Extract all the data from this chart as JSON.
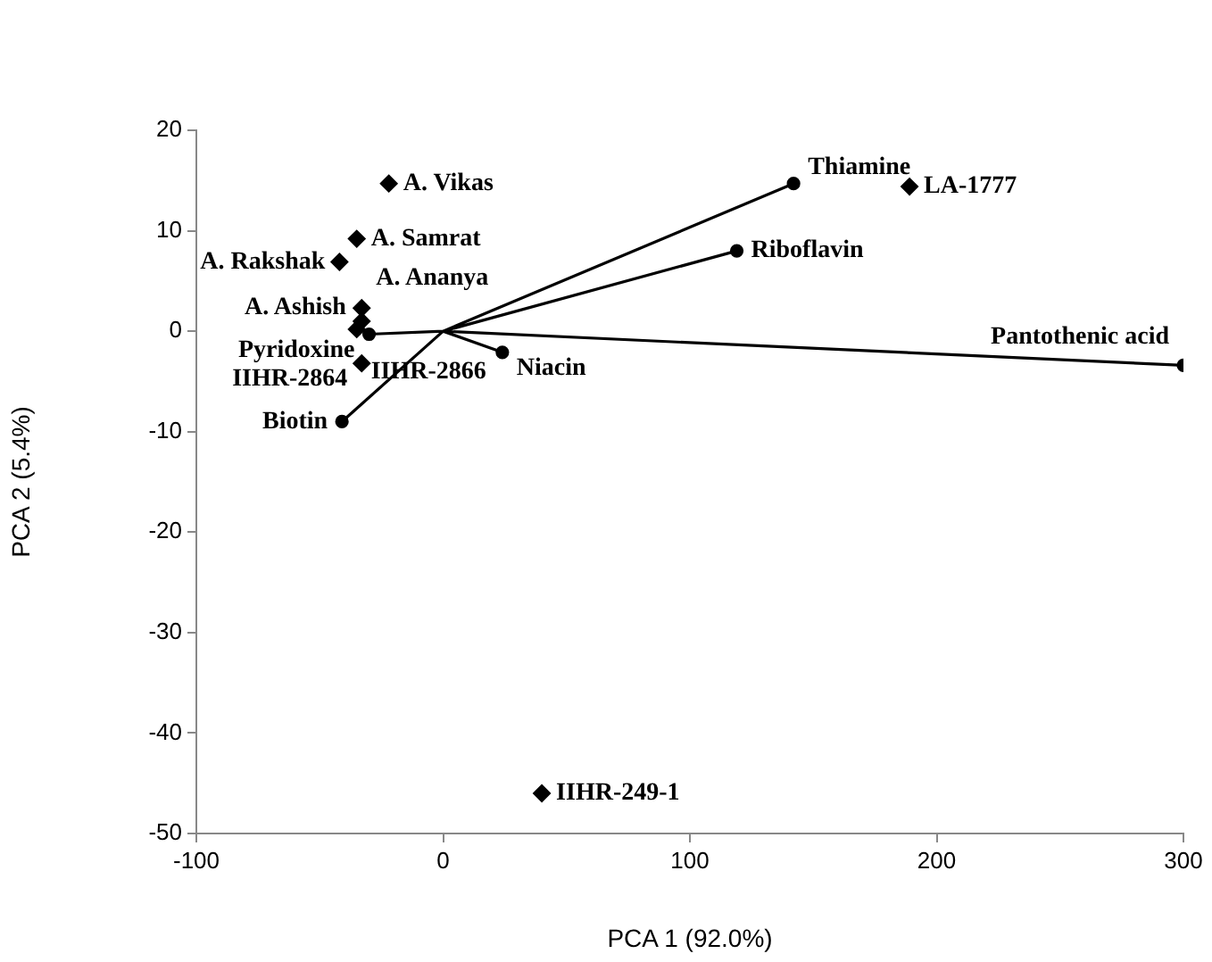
{
  "chart_data": {
    "type": "scatter",
    "xlabel": "PCA 1 (92.0%)",
    "ylabel": "PCA 2 (5.4%)",
    "xlim": [
      -100,
      300
    ],
    "ylim": [
      -50,
      20
    ],
    "xticks": [
      -100,
      0,
      100,
      200,
      300
    ],
    "yticks": [
      -50,
      -40,
      -30,
      -20,
      -10,
      0,
      10,
      20
    ],
    "grid": false,
    "legend": false,
    "series": [
      {
        "marker": "diamond",
        "color": "#000000",
        "x": [
          -22,
          -35,
          -42,
          -33,
          -33,
          -35,
          -33,
          40,
          189
        ],
        "values": [
          14.7,
          9.2,
          6.9,
          2.3,
          1,
          0.2,
          -3.2,
          -46,
          14.4
        ]
      },
      {
        "type": "line",
        "marker": "circle",
        "color": "#000000",
        "x": [
          0,
          142,
          null,
          0,
          119,
          null,
          0,
          300,
          null,
          0,
          24,
          null,
          0,
          -41,
          null,
          0,
          -30
        ],
        "values": [
          0,
          14.7,
          null,
          0,
          8,
          null,
          0,
          -3.4,
          null,
          0,
          -2.1,
          null,
          0,
          -9,
          null,
          0,
          -0.3
        ]
      }
    ],
    "annotations": [
      {
        "text": "LA-1777",
        "x": 189,
        "y": 14.4
      },
      {
        "text": "Pantothenic acid",
        "x": 300,
        "y": -3.4
      },
      {
        "text": "Thiamine",
        "x": 142,
        "y": 14.7
      },
      {
        "text": "Riboflavin",
        "x": 119,
        "y": 8
      },
      {
        "text": "Niacin",
        "x": 24,
        "y": -2.1
      },
      {
        "text": "IIHR-249-1",
        "x": 40,
        "y": -46
      },
      {
        "text": "A. Vikas",
        "x": -22,
        "y": 14.7
      },
      {
        "text": "A. Samrat",
        "x": -35,
        "y": 9.2
      },
      {
        "text": "A. Rakshak",
        "x": -42,
        "y": 6.9
      },
      {
        "text": "Biotin",
        "x": -41,
        "y": -9
      },
      {
        "text": "Pyridoxine",
        "x": -30,
        "y": -0.3
      },
      {
        "text": "A. Ashish",
        "x": -33,
        "y": 2.3
      },
      {
        "text": "A. Ananya",
        "x": -33,
        "y": 1
      },
      {
        "text": "IIHR-2866",
        "x": -35,
        "y": 0.2
      },
      {
        "text": "IIHR-2864",
        "x": -33,
        "y": -3.2
      }
    ]
  }
}
